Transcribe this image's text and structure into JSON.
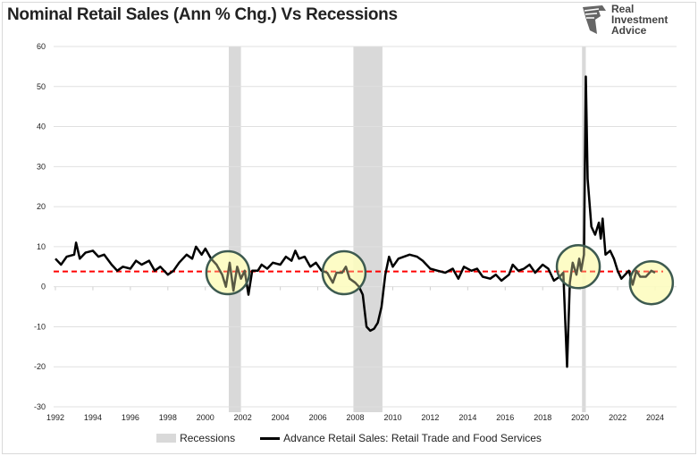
{
  "header": {
    "title": "Nominal Retail Sales (Ann % Chg.)  Vs Recessions",
    "logo_text": [
      "Real",
      "Investment",
      "Advice"
    ]
  },
  "chart_data": {
    "type": "line",
    "title": "Nominal Retail Sales (Ann % Chg.)  Vs Recessions",
    "xlim": [
      1992,
      2025.2
    ],
    "ylim": [
      -30,
      60
    ],
    "yticks": [
      -30,
      -20,
      -10,
      0,
      10,
      20,
      30,
      40,
      50,
      60
    ],
    "xticks": [
      1992,
      1994,
      1996,
      1998,
      2000,
      2002,
      2004,
      2006,
      2008,
      2010,
      2012,
      2014,
      2016,
      2018,
      2020,
      2022,
      2024
    ],
    "grid": "horizontal",
    "legend_position": "bottom",
    "colors": {
      "line": "#000000",
      "recession": "#d9d9d9",
      "reference": "#ff0000",
      "circle_fill": "#fdfbbf",
      "circle_stroke": "#3d5a50"
    },
    "reference_line": {
      "value": 3.8,
      "style": "dashed"
    },
    "recessions": {
      "name": "Recessions",
      "periods": [
        [
          2001.25,
          2001.9
        ],
        [
          2007.9,
          2009.45
        ],
        [
          2020.1,
          2020.3
        ]
      ]
    },
    "series": [
      {
        "name": "Advance Retail Sales: Retail Trade and Food Services",
        "points": [
          [
            1992.0,
            7
          ],
          [
            1992.3,
            5.5
          ],
          [
            1992.6,
            7.5
          ],
          [
            1993.0,
            8
          ],
          [
            1993.1,
            11
          ],
          [
            1993.3,
            7
          ],
          [
            1993.6,
            8.5
          ],
          [
            1994.0,
            9
          ],
          [
            1994.3,
            7.5
          ],
          [
            1994.6,
            8
          ],
          [
            1995.0,
            5.5
          ],
          [
            1995.3,
            4
          ],
          [
            1995.6,
            5
          ],
          [
            1996.0,
            4.5
          ],
          [
            1996.3,
            6.5
          ],
          [
            1996.6,
            5.5
          ],
          [
            1997.0,
            6.5
          ],
          [
            1997.3,
            4
          ],
          [
            1997.6,
            5
          ],
          [
            1998.0,
            3
          ],
          [
            1998.3,
            4
          ],
          [
            1998.6,
            6
          ],
          [
            1999.0,
            8
          ],
          [
            1999.3,
            7
          ],
          [
            1999.5,
            10
          ],
          [
            1999.8,
            8
          ],
          [
            2000.0,
            9.5
          ],
          [
            2000.3,
            7
          ],
          [
            2000.6,
            5.5
          ],
          [
            2000.9,
            3
          ],
          [
            2001.1,
            0
          ],
          [
            2001.3,
            6
          ],
          [
            2001.5,
            -1
          ],
          [
            2001.7,
            5
          ],
          [
            2001.9,
            2
          ],
          [
            2002.1,
            4
          ],
          [
            2002.3,
            -2
          ],
          [
            2002.5,
            4
          ],
          [
            2002.8,
            4
          ],
          [
            2003.0,
            5.5
          ],
          [
            2003.3,
            4.5
          ],
          [
            2003.6,
            6
          ],
          [
            2004.0,
            5.5
          ],
          [
            2004.3,
            7.5
          ],
          [
            2004.6,
            6.5
          ],
          [
            2004.8,
            9
          ],
          [
            2005.0,
            7
          ],
          [
            2005.3,
            7.5
          ],
          [
            2005.6,
            5
          ],
          [
            2005.9,
            6
          ],
          [
            2006.2,
            4
          ],
          [
            2006.5,
            3.5
          ],
          [
            2006.8,
            1
          ],
          [
            2007.0,
            3.5
          ],
          [
            2007.3,
            3.5
          ],
          [
            2007.5,
            5
          ],
          [
            2007.7,
            2
          ],
          [
            2008.0,
            1
          ],
          [
            2008.2,
            0
          ],
          [
            2008.4,
            -2
          ],
          [
            2008.6,
            -10
          ],
          [
            2008.8,
            -11
          ],
          [
            2009.0,
            -10.5
          ],
          [
            2009.2,
            -9
          ],
          [
            2009.4,
            -5
          ],
          [
            2009.6,
            3
          ],
          [
            2009.8,
            7.5
          ],
          [
            2010.0,
            5
          ],
          [
            2010.3,
            7
          ],
          [
            2010.6,
            7.5
          ],
          [
            2010.9,
            8
          ],
          [
            2011.3,
            7.5
          ],
          [
            2011.6,
            6.5
          ],
          [
            2012.0,
            4.5
          ],
          [
            2012.4,
            4
          ],
          [
            2012.8,
            3.5
          ],
          [
            2013.2,
            4.5
          ],
          [
            2013.5,
            2
          ],
          [
            2013.8,
            5
          ],
          [
            2014.2,
            4
          ],
          [
            2014.5,
            4.5
          ],
          [
            2014.8,
            2.5
          ],
          [
            2015.2,
            2
          ],
          [
            2015.5,
            3
          ],
          [
            2015.8,
            1.5
          ],
          [
            2016.2,
            3
          ],
          [
            2016.4,
            5.5
          ],
          [
            2016.7,
            4
          ],
          [
            2017.0,
            4.5
          ],
          [
            2017.3,
            5.5
          ],
          [
            2017.6,
            3.5
          ],
          [
            2018.0,
            5.5
          ],
          [
            2018.3,
            4.5
          ],
          [
            2018.6,
            1.5
          ],
          [
            2018.9,
            2.5
          ],
          [
            2019.1,
            3.5
          ],
          [
            2019.3,
            -20
          ],
          [
            2019.45,
            1
          ],
          [
            2019.6,
            6
          ],
          [
            2019.8,
            3
          ],
          [
            2019.95,
            7
          ],
          [
            2020.05,
            4
          ],
          [
            2020.2,
            8
          ],
          [
            2020.3,
            52.5
          ],
          [
            2020.4,
            27
          ],
          [
            2020.6,
            15
          ],
          [
            2020.8,
            13
          ],
          [
            2021.0,
            16
          ],
          [
            2021.1,
            12
          ],
          [
            2021.2,
            17
          ],
          [
            2021.35,
            8
          ],
          [
            2021.6,
            9
          ],
          [
            2021.8,
            7
          ],
          [
            2022.0,
            4
          ],
          [
            2022.2,
            2
          ],
          [
            2022.4,
            3
          ],
          [
            2022.6,
            4
          ],
          [
            2022.8,
            0.5
          ],
          [
            2023.0,
            4
          ],
          [
            2023.2,
            2.5
          ],
          [
            2023.5,
            2.5
          ],
          [
            2023.8,
            4
          ],
          [
            2024.0,
            3.5
          ]
        ]
      }
    ],
    "highlight_circles": [
      [
        2001.2,
        3.5
      ],
      [
        2007.4,
        3.5
      ],
      [
        2019.9,
        5
      ],
      [
        2023.8,
        1
      ]
    ]
  }
}
